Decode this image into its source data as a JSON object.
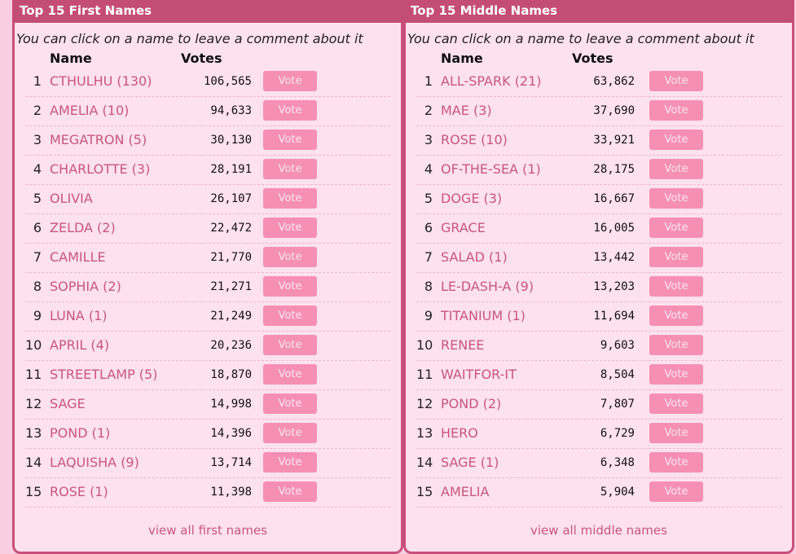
{
  "first_names": {
    "title": "Top 15 First Names",
    "subtitle": "You can click on a name to leave a comment about it",
    "col_name": "Name",
    "col_votes": "Votes",
    "vote_label": "Vote",
    "view_all": "view all first names",
    "rows": [
      {
        "rank": "1",
        "name": "CTHULHU (130)",
        "votes": "106,565"
      },
      {
        "rank": "2",
        "name": "AMELIA (10)",
        "votes": "94,633"
      },
      {
        "rank": "3",
        "name": "MEGATRON (5)",
        "votes": "30,130"
      },
      {
        "rank": "4",
        "name": "CHARLOTTE (3)",
        "votes": "28,191"
      },
      {
        "rank": "5",
        "name": "OLIVIA",
        "votes": "26,107"
      },
      {
        "rank": "6",
        "name": "ZELDA (2)",
        "votes": "22,472"
      },
      {
        "rank": "7",
        "name": "CAMILLE",
        "votes": "21,770"
      },
      {
        "rank": "8",
        "name": "SOPHIA (2)",
        "votes": "21,271"
      },
      {
        "rank": "9",
        "name": "LUNA (1)",
        "votes": "21,249"
      },
      {
        "rank": "10",
        "name": "APRIL (4)",
        "votes": "20,236"
      },
      {
        "rank": "11",
        "name": "STREETLAMP (5)",
        "votes": "18,870"
      },
      {
        "rank": "12",
        "name": "SAGE",
        "votes": "14,998"
      },
      {
        "rank": "13",
        "name": "POND (1)",
        "votes": "14,396"
      },
      {
        "rank": "14",
        "name": "LAQUISHA (9)",
        "votes": "13,714"
      },
      {
        "rank": "15",
        "name": "ROSE (1)",
        "votes": "11,398"
      }
    ]
  },
  "middle_names": {
    "title": "Top 15 Middle Names",
    "subtitle": "You can click on a name to leave a comment about it",
    "col_name": "Name",
    "col_votes": "Votes",
    "vote_label": "Vote",
    "view_all": "view all middle names",
    "rows": [
      {
        "rank": "1",
        "name": "ALL-SPARK (21)",
        "votes": "63,862"
      },
      {
        "rank": "2",
        "name": "MAE (3)",
        "votes": "37,690"
      },
      {
        "rank": "3",
        "name": "ROSE (10)",
        "votes": "33,921"
      },
      {
        "rank": "4",
        "name": "OF-THE-SEA (1)",
        "votes": "28,175"
      },
      {
        "rank": "5",
        "name": "DOGE (3)",
        "votes": "16,667"
      },
      {
        "rank": "6",
        "name": "GRACE",
        "votes": "16,005"
      },
      {
        "rank": "7",
        "name": "SALAD (1)",
        "votes": "13,442"
      },
      {
        "rank": "8",
        "name": "LE-DASH-A (9)",
        "votes": "13,203"
      },
      {
        "rank": "9",
        "name": "TITANIUM (1)",
        "votes": "11,694"
      },
      {
        "rank": "10",
        "name": "RENEE",
        "votes": "9,603"
      },
      {
        "rank": "11",
        "name": "WAITFOR-IT",
        "votes": "8,504"
      },
      {
        "rank": "12",
        "name": "POND (2)",
        "votes": "7,807"
      },
      {
        "rank": "13",
        "name": "HERO",
        "votes": "6,729"
      },
      {
        "rank": "14",
        "name": "SAGE (1)",
        "votes": "6,348"
      },
      {
        "rank": "15",
        "name": "AMELIA",
        "votes": "5,904"
      }
    ]
  },
  "colors": {
    "header_bg": "#c44d76",
    "panel_bg": "#fde1ec",
    "page_bg": "#f8cfe0",
    "link": "#c6577c",
    "button_bg": "#f590b3"
  }
}
